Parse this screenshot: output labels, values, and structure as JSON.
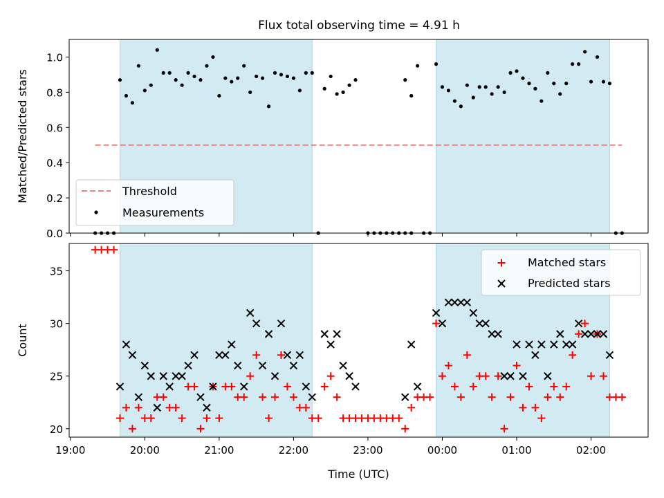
{
  "title": "Flux total observing time = 4.91 h",
  "colors": {
    "shade": "#add8e6",
    "threshold": "#f08080",
    "matched": "#ff0000",
    "predicted": "#000000",
    "measurement": "#000000"
  },
  "chart_data": [
    {
      "type": "scatter",
      "panel": "top",
      "ylabel": "Matched/Predicted stars",
      "ylim": [
        0,
        1.1
      ],
      "yticks": [
        "0.0",
        "0.2",
        "0.4",
        "0.6",
        "0.8",
        "1.0"
      ],
      "xlim": [
        "18:59",
        "02:46"
      ],
      "shaded_intervals": [
        [
          "19:40",
          "22:15"
        ],
        [
          "23:55",
          "02:15"
        ]
      ],
      "legend": {
        "position": "lower-left",
        "entries": [
          {
            "label": "Threshold"
          },
          {
            "label": "Measurements"
          }
        ]
      },
      "series": [
        {
          "name": "Threshold",
          "style": "dashed-line",
          "x": [
            "19:20",
            "02:25"
          ],
          "y": [
            0.5,
            0.5
          ]
        },
        {
          "name": "Measurements",
          "style": "dot",
          "points": [
            [
              "19:20",
              0
            ],
            [
              "19:25",
              0
            ],
            [
              "19:30",
              0
            ],
            [
              "19:35",
              0
            ],
            [
              "19:40",
              0.87
            ],
            [
              "19:45",
              0.78
            ],
            [
              "19:50",
              0.74
            ],
            [
              "19:55",
              0.95
            ],
            [
              "20:00",
              0.81
            ],
            [
              "20:05",
              0.84
            ],
            [
              "20:10",
              1.04
            ],
            [
              "20:15",
              0.91
            ],
            [
              "20:20",
              0.91
            ],
            [
              "20:25",
              0.87
            ],
            [
              "20:30",
              0.84
            ],
            [
              "20:35",
              0.91
            ],
            [
              "20:40",
              0.89
            ],
            [
              "20:45",
              0.87
            ],
            [
              "20:50",
              0.95
            ],
            [
              "20:55",
              1.0
            ],
            [
              "21:00",
              0.78
            ],
            [
              "21:05",
              0.88
            ],
            [
              "21:10",
              0.86
            ],
            [
              "21:15",
              0.88
            ],
            [
              "21:20",
              0.95
            ],
            [
              "21:25",
              0.8
            ],
            [
              "21:30",
              0.89
            ],
            [
              "21:35",
              0.88
            ],
            [
              "21:40",
              0.72
            ],
            [
              "21:45",
              0.91
            ],
            [
              "21:50",
              0.9
            ],
            [
              "21:55",
              0.89
            ],
            [
              "22:00",
              0.88
            ],
            [
              "22:05",
              0.81
            ],
            [
              "22:10",
              0.91
            ],
            [
              "22:15",
              0.91
            ],
            [
              "22:20",
              0
            ],
            [
              "22:25",
              0.82
            ],
            [
              "22:30",
              0.89
            ],
            [
              "22:35",
              0.79
            ],
            [
              "22:40",
              0.8
            ],
            [
              "22:45",
              0.84
            ],
            [
              "22:50",
              0.87
            ],
            [
              "23:00",
              0
            ],
            [
              "23:05",
              0
            ],
            [
              "23:10",
              0
            ],
            [
              "23:15",
              0
            ],
            [
              "23:20",
              0
            ],
            [
              "23:25",
              0
            ],
            [
              "23:30",
              0
            ],
            [
              "23:35",
              0
            ],
            [
              "23:30",
              0.87
            ],
            [
              "23:35",
              0.78
            ],
            [
              "23:40",
              0.95
            ],
            [
              "23:45",
              0
            ],
            [
              "23:50",
              0
            ],
            [
              "23:55",
              0.96
            ],
            [
              "00:00",
              0.83
            ],
            [
              "00:05",
              0.81
            ],
            [
              "00:10",
              0.75
            ],
            [
              "00:15",
              0.72
            ],
            [
              "00:20",
              0.84
            ],
            [
              "00:25",
              0.77
            ],
            [
              "00:30",
              0.83
            ],
            [
              "00:35",
              0.83
            ],
            [
              "00:40",
              0.79
            ],
            [
              "00:45",
              0.83
            ],
            [
              "00:50",
              0.8
            ],
            [
              "00:55",
              0.91
            ],
            [
              "01:00",
              0.92
            ],
            [
              "01:05",
              0.88
            ],
            [
              "01:10",
              0.85
            ],
            [
              "01:15",
              0.82
            ],
            [
              "01:20",
              0.75
            ],
            [
              "01:25",
              0.91
            ],
            [
              "01:30",
              0.85
            ],
            [
              "01:35",
              0.79
            ],
            [
              "01:40",
              0.85
            ],
            [
              "01:45",
              0.96
            ],
            [
              "01:50",
              0.96
            ],
            [
              "01:55",
              1.03
            ],
            [
              "02:00",
              0.86
            ],
            [
              "02:05",
              1.0
            ],
            [
              "02:10",
              0.86
            ],
            [
              "02:15",
              0.85
            ],
            [
              "02:20",
              0
            ],
            [
              "02:25",
              0
            ]
          ]
        }
      ]
    },
    {
      "type": "scatter",
      "panel": "bottom",
      "xlabel": "Time (UTC)",
      "ylabel": "Count",
      "ylim": [
        19.2,
        37.6
      ],
      "yticks": [
        "20",
        "25",
        "30",
        "35"
      ],
      "xlim": [
        "18:59",
        "02:46"
      ],
      "xticks": [
        "19:00",
        "20:00",
        "21:00",
        "22:00",
        "23:00",
        "00:00",
        "01:00",
        "02:00"
      ],
      "shaded_intervals": [
        [
          "19:40",
          "22:15"
        ],
        [
          "23:55",
          "02:15"
        ]
      ],
      "legend": {
        "position": "upper-right",
        "entries": [
          {
            "label": "Matched stars"
          },
          {
            "label": "Predicted stars"
          }
        ]
      },
      "series": [
        {
          "name": "Matched stars",
          "marker": "+",
          "points": [
            [
              "19:20",
              37
            ],
            [
              "19:25",
              37
            ],
            [
              "19:30",
              37
            ],
            [
              "19:35",
              37
            ],
            [
              "19:40",
              21
            ],
            [
              "19:45",
              22
            ],
            [
              "19:50",
              20
            ],
            [
              "19:55",
              22
            ],
            [
              "20:00",
              21
            ],
            [
              "20:05",
              21
            ],
            [
              "20:10",
              23
            ],
            [
              "20:15",
              23
            ],
            [
              "20:20",
              22
            ],
            [
              "20:25",
              22
            ],
            [
              "20:30",
              21
            ],
            [
              "20:35",
              24
            ],
            [
              "20:40",
              24
            ],
            [
              "20:45",
              20
            ],
            [
              "20:50",
              21
            ],
            [
              "20:55",
              24
            ],
            [
              "21:00",
              21
            ],
            [
              "21:05",
              24
            ],
            [
              "21:10",
              24
            ],
            [
              "21:15",
              23
            ],
            [
              "21:20",
              23
            ],
            [
              "21:25",
              25
            ],
            [
              "21:30",
              27
            ],
            [
              "21:35",
              23
            ],
            [
              "21:40",
              21
            ],
            [
              "21:45",
              23
            ],
            [
              "21:50",
              27
            ],
            [
              "21:55",
              24
            ],
            [
              "22:00",
              23
            ],
            [
              "22:05",
              22
            ],
            [
              "22:10",
              22
            ],
            [
              "22:15",
              21
            ],
            [
              "22:20",
              21
            ],
            [
              "22:25",
              24
            ],
            [
              "22:30",
              25
            ],
            [
              "22:35",
              23
            ],
            [
              "22:40",
              21
            ],
            [
              "22:45",
              21
            ],
            [
              "22:50",
              21
            ],
            [
              "22:55",
              21
            ],
            [
              "23:00",
              21
            ],
            [
              "23:05",
              21
            ],
            [
              "23:10",
              21
            ],
            [
              "23:15",
              21
            ],
            [
              "23:20",
              21
            ],
            [
              "23:25",
              21
            ],
            [
              "23:30",
              20
            ],
            [
              "23:35",
              22
            ],
            [
              "23:40",
              23
            ],
            [
              "23:45",
              23
            ],
            [
              "23:50",
              23
            ],
            [
              "23:55",
              30
            ],
            [
              "00:00",
              25
            ],
            [
              "00:05",
              26
            ],
            [
              "00:10",
              24
            ],
            [
              "00:15",
              23
            ],
            [
              "00:20",
              27
            ],
            [
              "00:25",
              24
            ],
            [
              "00:30",
              25
            ],
            [
              "00:35",
              25
            ],
            [
              "00:40",
              23
            ],
            [
              "00:45",
              25
            ],
            [
              "00:50",
              20
            ],
            [
              "00:55",
              23
            ],
            [
              "01:00",
              26
            ],
            [
              "01:05",
              22
            ],
            [
              "01:10",
              24
            ],
            [
              "01:15",
              22
            ],
            [
              "01:20",
              21
            ],
            [
              "01:25",
              23
            ],
            [
              "01:30",
              24
            ],
            [
              "01:35",
              23
            ],
            [
              "01:40",
              24
            ],
            [
              "01:45",
              27
            ],
            [
              "01:50",
              29
            ],
            [
              "01:55",
              30
            ],
            [
              "02:00",
              25
            ],
            [
              "02:05",
              29
            ],
            [
              "02:10",
              25
            ],
            [
              "02:15",
              23
            ],
            [
              "02:20",
              23
            ],
            [
              "02:25",
              23
            ]
          ]
        },
        {
          "name": "Predicted stars",
          "marker": "x",
          "points": [
            [
              "19:40",
              24
            ],
            [
              "19:45",
              28
            ],
            [
              "19:50",
              27
            ],
            [
              "19:55",
              23
            ],
            [
              "20:00",
              26
            ],
            [
              "20:05",
              25
            ],
            [
              "20:10",
              22
            ],
            [
              "20:15",
              25
            ],
            [
              "20:20",
              24
            ],
            [
              "20:25",
              25
            ],
            [
              "20:30",
              25
            ],
            [
              "20:35",
              26
            ],
            [
              "20:40",
              27
            ],
            [
              "20:45",
              23
            ],
            [
              "20:50",
              22
            ],
            [
              "20:55",
              24
            ],
            [
              "21:00",
              27
            ],
            [
              "21:05",
              27
            ],
            [
              "21:10",
              28
            ],
            [
              "21:15",
              26
            ],
            [
              "21:20",
              24
            ],
            [
              "21:25",
              31
            ],
            [
              "21:30",
              30
            ],
            [
              "21:35",
              26
            ],
            [
              "21:40",
              29
            ],
            [
              "21:45",
              25
            ],
            [
              "21:50",
              30
            ],
            [
              "21:55",
              27
            ],
            [
              "22:00",
              26
            ],
            [
              "22:05",
              27
            ],
            [
              "22:10",
              24
            ],
            [
              "22:15",
              23
            ],
            [
              "22:25",
              29
            ],
            [
              "22:30",
              28
            ],
            [
              "22:35",
              29
            ],
            [
              "22:40",
              26
            ],
            [
              "22:45",
              25
            ],
            [
              "22:50",
              24
            ],
            [
              "23:30",
              23
            ],
            [
              "23:35",
              28
            ],
            [
              "23:40",
              24
            ],
            [
              "23:55",
              31
            ],
            [
              "00:00",
              30
            ],
            [
              "00:05",
              32
            ],
            [
              "00:10",
              32
            ],
            [
              "00:15",
              32
            ],
            [
              "00:20",
              32
            ],
            [
              "00:25",
              31
            ],
            [
              "00:30",
              30
            ],
            [
              "00:35",
              30
            ],
            [
              "00:40",
              29
            ],
            [
              "00:45",
              29
            ],
            [
              "00:50",
              25
            ],
            [
              "00:55",
              25
            ],
            [
              "01:00",
              28
            ],
            [
              "01:05",
              25
            ],
            [
              "01:10",
              28
            ],
            [
              "01:15",
              27
            ],
            [
              "01:20",
              28
            ],
            [
              "01:25",
              25
            ],
            [
              "01:30",
              28
            ],
            [
              "01:35",
              29
            ],
            [
              "01:40",
              28
            ],
            [
              "01:45",
              28
            ],
            [
              "01:50",
              30
            ],
            [
              "01:55",
              29
            ],
            [
              "02:00",
              29
            ],
            [
              "02:05",
              29
            ],
            [
              "02:10",
              29
            ],
            [
              "02:15",
              27
            ]
          ]
        }
      ]
    }
  ]
}
